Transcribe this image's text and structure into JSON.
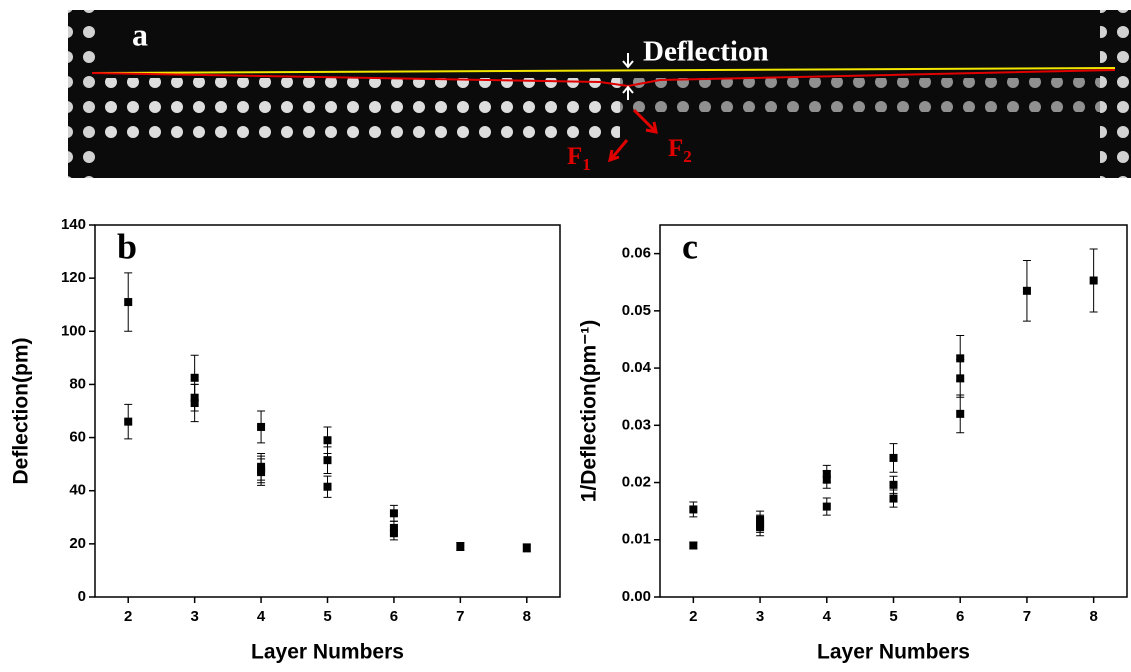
{
  "image_panel": {
    "label": "a",
    "annotation": "Deflection",
    "forces": [
      {
        "symbol": "F",
        "subscript": "1"
      },
      {
        "symbol": "F",
        "subscript": "2"
      }
    ]
  },
  "chart_data": [
    {
      "type": "scatter",
      "panel_label": "b",
      "x_label": "Layer Numbers",
      "y_label": "Deflection(pm)",
      "color": "#000000",
      "x": [
        2,
        2,
        3,
        3,
        3,
        4,
        4,
        4,
        4,
        5,
        5,
        5,
        6,
        6,
        6,
        7,
        8
      ],
      "values": [
        111,
        66,
        82.5,
        75,
        73,
        64,
        49,
        48,
        47,
        59,
        51.5,
        41.5,
        31.5,
        26,
        24,
        19,
        18.5
      ],
      "errors": [
        11,
        6.5,
        8.5,
        5,
        7,
        6,
        5,
        5,
        5,
        5,
        5,
        4,
        3,
        2.5,
        2.5,
        1.5,
        1.5
      ],
      "xlim": [
        1.5,
        8.5
      ],
      "xticks": [
        2,
        3,
        4,
        5,
        6,
        7,
        8
      ],
      "ylim": [
        0,
        140
      ],
      "yticks": [
        0,
        20,
        40,
        60,
        80,
        100,
        120,
        140
      ]
    },
    {
      "type": "scatter",
      "panel_label": "c",
      "x_label": "Layer Numbers",
      "y_label": "1/Deflection(pm⁻¹)",
      "color": "#000000",
      "x": [
        2,
        2,
        3,
        3,
        3,
        4,
        4,
        4,
        5,
        5,
        5,
        6,
        6,
        6,
        7,
        8
      ],
      "values": [
        0.0153,
        0.009,
        0.0135,
        0.0128,
        0.0122,
        0.0215,
        0.0205,
        0.0158,
        0.0243,
        0.0196,
        0.0172,
        0.0417,
        0.0382,
        0.032,
        0.0535,
        0.0553
      ],
      "errors": [
        0.0013,
        0.0006,
        0.0015,
        0.0015,
        0.0015,
        0.0015,
        0.0015,
        0.0015,
        0.0025,
        0.0015,
        0.0015,
        0.004,
        0.0033,
        0.0033,
        0.0053,
        0.0055
      ],
      "xlim": [
        1.5,
        8.5
      ],
      "xticks": [
        2,
        3,
        4,
        5,
        6,
        7,
        8
      ],
      "ylim": [
        0,
        0.065
      ],
      "yticks": [
        {
          "value": 0,
          "label": "0.00"
        },
        0.01,
        0.02,
        0.03,
        0.04,
        0.05,
        0.06
      ]
    }
  ]
}
